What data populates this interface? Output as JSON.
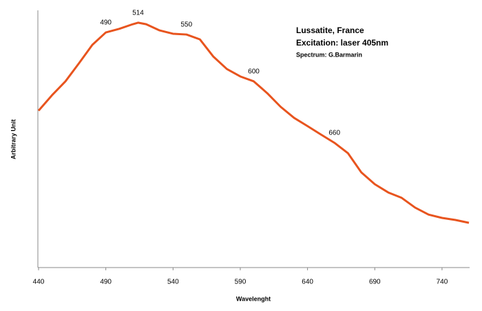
{
  "chart_data": {
    "type": "line",
    "title": "Lussatite, France",
    "subtitle": "Excitation: laser 405nm",
    "credit": "Spectrum: G.Barmarin",
    "xlabel": "Wavelenght",
    "ylabel": "Arbitrary Unit",
    "x": [
      440,
      450,
      460,
      470,
      480,
      490,
      500,
      510,
      514,
      520,
      530,
      540,
      550,
      560,
      570,
      580,
      590,
      600,
      610,
      620,
      630,
      640,
      650,
      660,
      670,
      680,
      690,
      700,
      710,
      720,
      730,
      740,
      750,
      760
    ],
    "series": [
      {
        "name": "Lussatite",
        "color": "#e8541e",
        "values": [
          61,
          67,
          72.4,
          79.4,
          86.6,
          91.4,
          92.8,
          94.6,
          95.2,
          94.6,
          92.2,
          90.9,
          90.6,
          88.7,
          82,
          77.2,
          74.3,
          72.4,
          67.8,
          62.5,
          58.2,
          55,
          51.7,
          48.5,
          44.5,
          37,
          32.4,
          29.2,
          27.1,
          23.3,
          20.6,
          19.3,
          18.5,
          17.4
        ]
      }
    ],
    "annotations": [
      490,
      514,
      550,
      600,
      660
    ],
    "xlim": [
      440,
      760
    ],
    "xticks": [
      440,
      490,
      540,
      590,
      640,
      690,
      740
    ],
    "ylim": [
      0,
      100
    ],
    "grid": false
  }
}
